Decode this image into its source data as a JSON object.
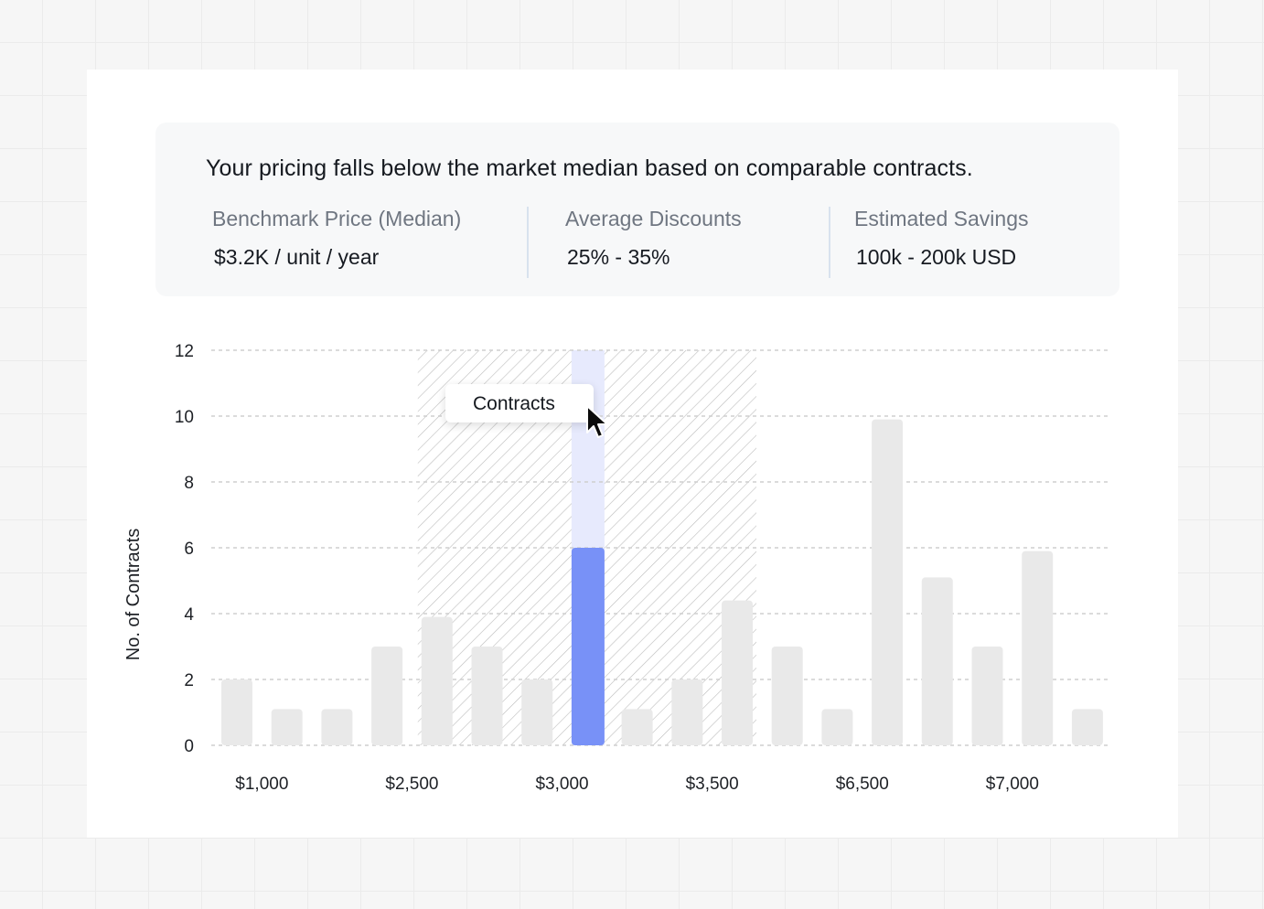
{
  "summary": {
    "headline": "Your pricing falls below the market median based on comparable contracts.",
    "metrics": [
      {
        "label": "Benchmark Price (Median)",
        "value": "$3.2K / unit / year"
      },
      {
        "label": "Average Discounts",
        "value": "25% - 35%"
      },
      {
        "label": "Estimated Savings",
        "value": "100k - 200k USD"
      }
    ]
  },
  "tooltip": {
    "label": "Contracts"
  },
  "chart_data": {
    "type": "bar",
    "ylabel": "No. of Contracts",
    "xlabel": "",
    "ylim": [
      0,
      12
    ],
    "yticks": [
      0,
      2,
      4,
      6,
      8,
      10,
      12
    ],
    "grid": true,
    "x_tick_labels": [
      "$1,000",
      "$2,500",
      "$3,000",
      "$3,500",
      "$6,500",
      "$7,000"
    ],
    "x_tick_bar_index": [
      0.5,
      3.5,
      6.5,
      9.5,
      12.5,
      15.5
    ],
    "values": [
      2,
      1.1,
      1.1,
      3,
      3.9,
      3,
      2,
      6,
      1.1,
      2,
      4.4,
      3,
      1.1,
      9.9,
      5.1,
      3,
      5.9,
      1.1
    ],
    "highlight_index": 7,
    "highlight_band_top": 12,
    "shaded_range_bar_indices": [
      4,
      10
    ],
    "colors": {
      "bar": "#e9e9e9",
      "highlight": "#7891f7",
      "highlight_band": "#e7eafd",
      "grid": "#cfcfcf",
      "hatch": "#bdbdbd",
      "axis_text": "#1d2025"
    }
  }
}
